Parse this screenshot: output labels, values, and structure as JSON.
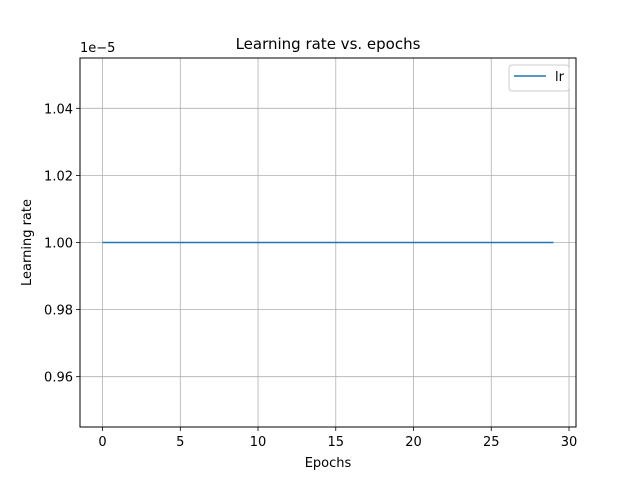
{
  "chart_data": {
    "type": "line",
    "title": "Learning rate vs. epochs",
    "xlabel": "Epochs",
    "ylabel": "Learning rate",
    "y_offset_text": "1e−5",
    "xlim": [
      -1.45,
      30.45
    ],
    "ylim": [
      0.945,
      1.055
    ],
    "xticks": [
      0,
      5,
      10,
      15,
      20,
      25,
      30
    ],
    "xtick_labels": [
      "0",
      "5",
      "10",
      "15",
      "20",
      "25",
      "30"
    ],
    "yticks": [
      0.96,
      0.98,
      1.0,
      1.02,
      1.04
    ],
    "ytick_labels": [
      "0.96",
      "0.98",
      "1.00",
      "1.02",
      "1.04"
    ],
    "grid": true,
    "legend_position": "top-right",
    "series": [
      {
        "name": "lr",
        "color": "#1f77b4",
        "x": [
          0,
          1,
          2,
          3,
          4,
          5,
          6,
          7,
          8,
          9,
          10,
          11,
          12,
          13,
          14,
          15,
          16,
          17,
          18,
          19,
          20,
          21,
          22,
          23,
          24,
          25,
          26,
          27,
          28,
          29
        ],
        "y": [
          1.0,
          1.0,
          1.0,
          1.0,
          1.0,
          1.0,
          1.0,
          1.0,
          1.0,
          1.0,
          1.0,
          1.0,
          1.0,
          1.0,
          1.0,
          1.0,
          1.0,
          1.0,
          1.0,
          1.0,
          1.0,
          1.0,
          1.0,
          1.0,
          1.0,
          1.0,
          1.0,
          1.0,
          1.0,
          1.0
        ]
      }
    ]
  }
}
